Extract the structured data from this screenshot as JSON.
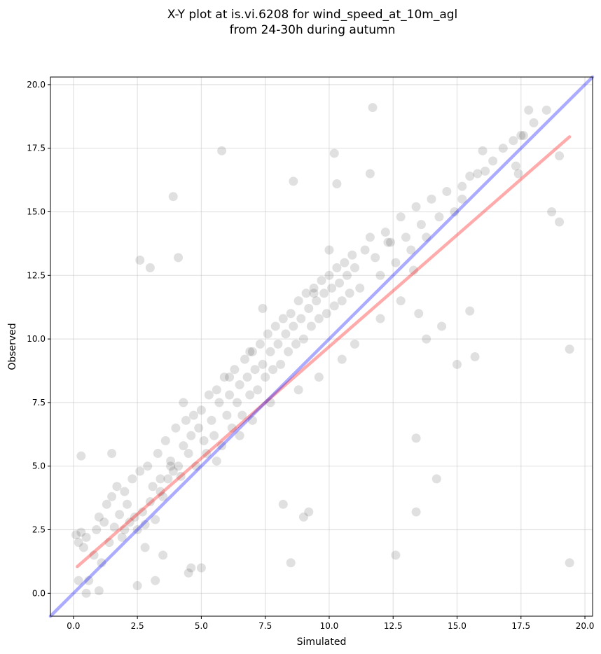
{
  "chart_data": {
    "type": "scatter",
    "title": "X-Y plot at is.vi.6208 for wind_speed_at_10m_agl",
    "subtitle": "from 24-30h during autumn",
    "xlabel": "Simulated",
    "ylabel": "Observed",
    "xlim": [
      -0.9,
      20.3
    ],
    "ylim": [
      -0.9,
      20.3
    ],
    "xticks": [
      "0.0",
      "2.5",
      "5.0",
      "7.5",
      "10.0",
      "12.5",
      "15.0",
      "17.5",
      "20.0"
    ],
    "yticks": [
      "0.0",
      "2.5",
      "5.0",
      "7.5",
      "10.0",
      "12.5",
      "15.0",
      "17.5",
      "20.0"
    ],
    "grid": true,
    "legend": "none",
    "colors": {
      "points": "#000000",
      "fit_line": "#ff0000",
      "identity_line": "#0000ff"
    },
    "lines": [
      {
        "role": "regression",
        "color": "#ff0000",
        "x": [
          0.15,
          19.4
        ],
        "y": [
          1.05,
          17.95
        ]
      },
      {
        "role": "identity",
        "color": "#0000ff",
        "x": [
          -0.9,
          20.3
        ],
        "y": [
          -0.9,
          20.3
        ]
      }
    ],
    "points_x": [
      0.1,
      0.2,
      0.3,
      0.4,
      0.5,
      0.6,
      0.5,
      0.3,
      0.8,
      0.9,
      1.0,
      1.1,
      1.2,
      1.3,
      1.4,
      1.5,
      1.6,
      1.7,
      1.8,
      1.9,
      2.0,
      2.1,
      2.2,
      2.3,
      2.4,
      2.5,
      2.6,
      2.7,
      2.8,
      2.9,
      3.0,
      3.1,
      3.2,
      3.3,
      3.4,
      3.5,
      3.6,
      3.7,
      3.8,
      3.9,
      4.0,
      4.1,
      4.2,
      4.3,
      4.4,
      4.5,
      4.6,
      4.7,
      4.8,
      4.9,
      5.0,
      5.1,
      5.2,
      5.3,
      5.4,
      5.5,
      5.6,
      5.7,
      5.8,
      5.9,
      6.0,
      6.1,
      6.2,
      6.3,
      6.4,
      6.5,
      6.6,
      6.7,
      6.8,
      6.9,
      7.0,
      7.1,
      7.2,
      7.3,
      7.4,
      7.5,
      7.6,
      7.7,
      7.8,
      7.9,
      8.0,
      8.1,
      8.2,
      8.3,
      8.4,
      8.5,
      8.6,
      8.7,
      8.8,
      8.9,
      9.0,
      9.1,
      9.2,
      9.3,
      9.4,
      9.5,
      9.6,
      9.7,
      9.8,
      9.9,
      10.0,
      10.1,
      10.2,
      10.3,
      10.4,
      10.5,
      10.6,
      10.7,
      10.8,
      10.9,
      11.0,
      11.2,
      11.4,
      11.6,
      11.8,
      12.0,
      12.2,
      12.4,
      12.6,
      12.8,
      13.0,
      13.2,
      13.4,
      13.6,
      13.8,
      14.0,
      14.3,
      14.6,
      14.9,
      15.2,
      15.5,
      15.8,
      16.1,
      16.4,
      16.8,
      17.2,
      17.6,
      18.0,
      18.5,
      19.0,
      19.4,
      0.2,
      1.0,
      2.5,
      3.2,
      3.9,
      5.8,
      10.2,
      10.3,
      13.4,
      13.5,
      2.6,
      3.0,
      4.1,
      4.6,
      8.5,
      9.2,
      8.6,
      11.6,
      11.7,
      17.3,
      17.4,
      17.8,
      18.7,
      19.4,
      15.0,
      15.2,
      16.0,
      17.5,
      19.0,
      15.5,
      15.7,
      13.8,
      14.4,
      13.3,
      13.4,
      9.0,
      8.2,
      5.0,
      4.5,
      3.5,
      2.0,
      1.5,
      6.5,
      7.0,
      7.7,
      8.8,
      9.6,
      10.5,
      11.0,
      12.0,
      12.8,
      14.2,
      3.8,
      4.3,
      6.1,
      6.9,
      7.4,
      9.4,
      10.0,
      12.3,
      12.6,
      2.8,
      3.4,
      5.6,
      6.3
    ],
    "points_y": [
      2.3,
      2.0,
      2.4,
      1.8,
      2.2,
      0.5,
      0.0,
      5.4,
      1.5,
      2.5,
      3.0,
      1.2,
      2.8,
      3.5,
      2.0,
      3.8,
      2.6,
      4.2,
      3.1,
      2.2,
      4.0,
      3.5,
      2.8,
      4.5,
      3.0,
      2.5,
      4.8,
      3.2,
      2.7,
      5.0,
      3.6,
      4.2,
      2.9,
      5.5,
      4.0,
      3.8,
      6.0,
      4.5,
      5.2,
      4.8,
      6.5,
      5.0,
      4.6,
      5.8,
      6.8,
      5.5,
      6.2,
      7.0,
      5.0,
      6.5,
      7.2,
      6.0,
      5.5,
      7.8,
      6.8,
      6.2,
      8.0,
      7.5,
      5.8,
      8.5,
      7.0,
      7.8,
      6.5,
      8.8,
      7.5,
      8.2,
      7.0,
      9.2,
      8.5,
      7.8,
      9.5,
      8.8,
      8.0,
      9.8,
      9.0,
      8.5,
      10.2,
      9.5,
      8.8,
      10.5,
      9.8,
      9.0,
      10.8,
      10.2,
      9.5,
      11.0,
      10.5,
      9.8,
      11.5,
      10.8,
      10.0,
      11.8,
      11.2,
      10.5,
      12.0,
      11.5,
      10.8,
      12.3,
      11.8,
      11.0,
      12.5,
      12.0,
      11.3,
      12.8,
      12.2,
      11.5,
      13.0,
      12.5,
      11.8,
      13.3,
      12.8,
      12.0,
      13.5,
      14.0,
      13.2,
      12.5,
      14.2,
      13.8,
      13.0,
      14.8,
      14.0,
      13.5,
      15.2,
      14.5,
      14.0,
      15.5,
      14.8,
      15.8,
      15.0,
      15.5,
      16.4,
      16.5,
      16.6,
      17.0,
      17.5,
      17.8,
      18.0,
      18.5,
      19.0,
      17.2,
      1.2,
      0.5,
      0.1,
      0.3,
      0.5,
      15.6,
      17.4,
      17.3,
      16.1,
      6.1,
      11.0,
      13.1,
      12.8,
      13.2,
      1.0,
      1.2,
      3.2,
      16.2,
      16.5,
      19.1,
      16.8,
      16.5,
      19.0,
      15.0,
      9.6,
      9.0,
      16.0,
      17.4,
      18.0,
      14.6,
      11.1,
      9.3,
      10.0,
      10.5,
      12.7,
      3.2,
      3.0,
      3.5,
      1.0,
      0.8,
      1.5,
      2.5,
      5.5,
      6.2,
      6.8,
      7.5,
      8.0,
      8.5,
      9.2,
      9.8,
      10.8,
      11.5,
      4.5,
      5.0,
      7.5,
      8.5,
      9.5,
      11.2,
      11.8,
      13.5,
      13.8,
      1.5,
      1.8,
      4.5,
      5.2
    ]
  }
}
